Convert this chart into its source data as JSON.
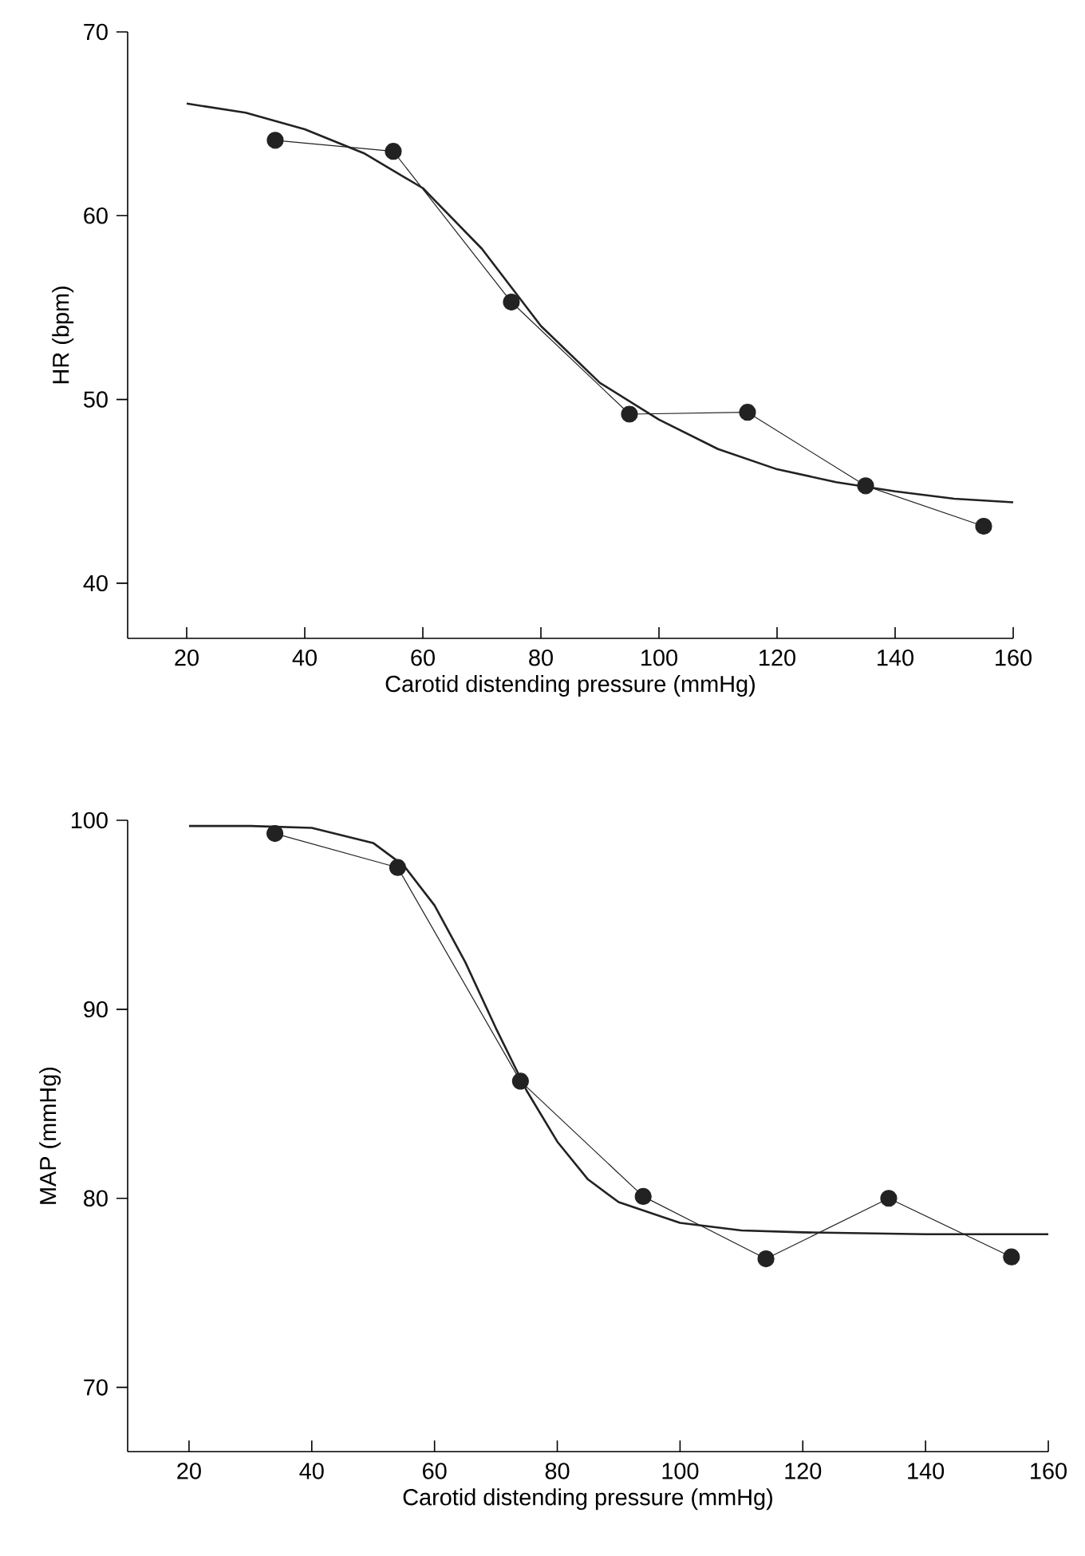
{
  "chart_data": [
    {
      "type": "line",
      "xlabel": "Carotid distending pressure (mmHg)",
      "ylabel": "HR (bpm)",
      "xlim": [
        10,
        160
      ],
      "ylim": [
        37,
        70
      ],
      "xticks": [
        20,
        40,
        60,
        80,
        100,
        120,
        140,
        160
      ],
      "yticks": [
        40,
        50,
        60,
        70
      ],
      "series": [
        {
          "type": "line",
          "marker": "circle",
          "line_style": "solid",
          "color": "#222222",
          "x": [
            35,
            55,
            75,
            95,
            115,
            135,
            155
          ],
          "values": [
            64.1,
            63.5,
            55.3,
            49.2,
            49.3,
            45.3,
            43.1
          ]
        },
        {
          "type": "line",
          "marker": "none",
          "line_style": "solid",
          "color": "#222222",
          "x": [
            20,
            30,
            40,
            50,
            60,
            70,
            80,
            90,
            100,
            110,
            120,
            130,
            140,
            150,
            160
          ],
          "values": [
            66.1,
            65.6,
            64.7,
            63.4,
            61.5,
            58.2,
            54.0,
            50.9,
            48.9,
            47.3,
            46.2,
            45.5,
            45.0,
            44.6,
            44.4
          ]
        }
      ]
    },
    {
      "type": "line",
      "xlabel": "Carotid distending pressure (mmHg)",
      "ylabel": "MAP (mmHg)",
      "xlim": [
        10,
        160
      ],
      "ylim": [
        66.6,
        100
      ],
      "xticks": [
        20,
        40,
        60,
        80,
        100,
        120,
        140,
        160
      ],
      "yticks": [
        70,
        80,
        90,
        100
      ],
      "series": [
        {
          "type": "line",
          "marker": "circle",
          "line_style": "solid",
          "color": "#222222",
          "x": [
            34,
            54,
            74,
            94,
            114,
            134,
            154
          ],
          "values": [
            99.3,
            97.5,
            86.2,
            80.1,
            76.8,
            80.0,
            76.9
          ]
        },
        {
          "type": "line",
          "marker": "none",
          "line_style": "solid",
          "color": "#222222",
          "x": [
            20,
            30,
            40,
            50,
            55,
            60,
            65,
            70,
            75,
            80,
            85,
            90,
            100,
            110,
            120,
            140,
            160
          ],
          "values": [
            99.7,
            99.7,
            99.6,
            98.8,
            97.6,
            95.5,
            92.5,
            89.0,
            85.7,
            83.0,
            81.0,
            79.8,
            78.7,
            78.3,
            78.2,
            78.1,
            78.1
          ]
        }
      ]
    }
  ]
}
